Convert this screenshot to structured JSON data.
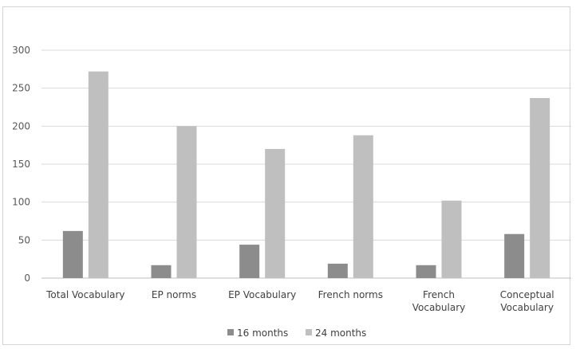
{
  "chart_data": {
    "type": "bar",
    "title": "",
    "xlabel": "",
    "ylabel": "",
    "ylim": [
      0,
      300
    ],
    "yticks": [
      0,
      50,
      100,
      150,
      200,
      250,
      300
    ],
    "grid": true,
    "legend_position": "bottom",
    "categories": [
      [
        "Total Vocabulary"
      ],
      [
        "EP norms"
      ],
      [
        "EP Vocabulary"
      ],
      [
        "French norms"
      ],
      [
        "French",
        "Vocabulary"
      ],
      [
        "Conceptual",
        "Vocabulary"
      ]
    ],
    "series": [
      {
        "name": "16 months",
        "color": "#8c8c8c",
        "values": [
          62,
          17,
          44,
          19,
          17,
          58
        ]
      },
      {
        "name": "24 months",
        "color": "#bfbfbf",
        "values": [
          272,
          200,
          170,
          188,
          102,
          237
        ]
      }
    ]
  }
}
